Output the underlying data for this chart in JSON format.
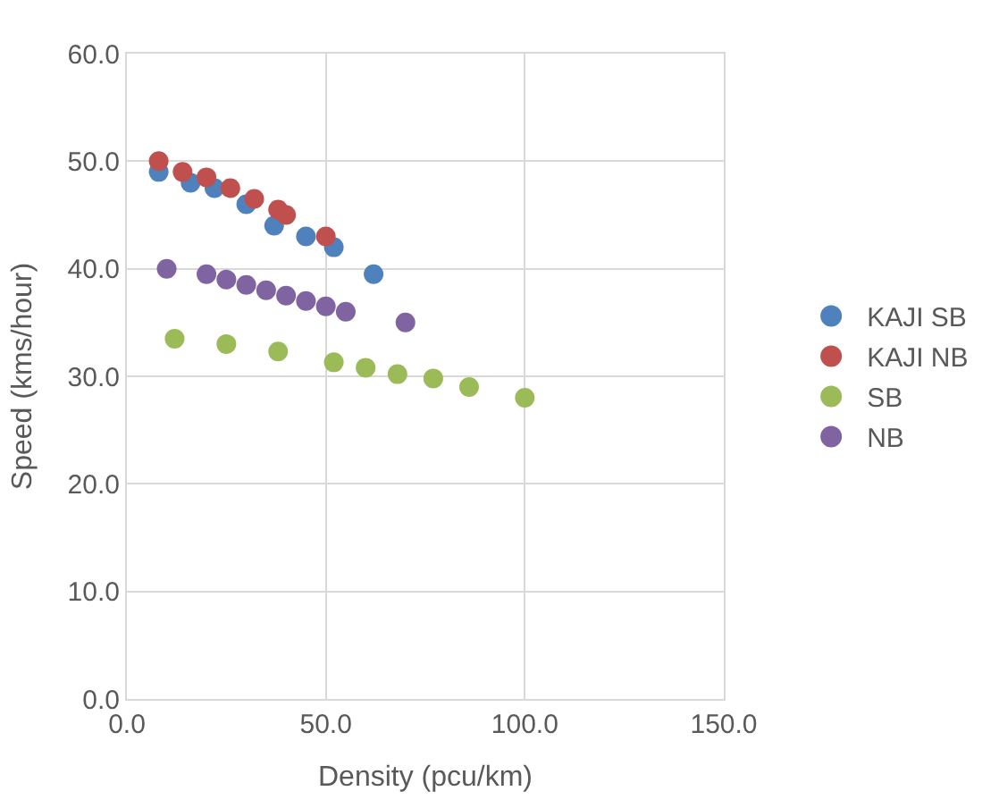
{
  "chart_data": {
    "type": "scatter",
    "xlabel": "Density (pcu/km)",
    "ylabel": "Speed (kms/hour)",
    "xlim": [
      0,
      150
    ],
    "ylim": [
      0,
      60
    ],
    "xticks": [
      {
        "value": 0,
        "label": "0.0"
      },
      {
        "value": 50,
        "label": "50.0"
      },
      {
        "value": 100,
        "label": "100.0"
      },
      {
        "value": 150,
        "label": "150.0"
      }
    ],
    "yticks": [
      {
        "value": 0,
        "label": "0.0"
      },
      {
        "value": 10,
        "label": "10.0"
      },
      {
        "value": 20,
        "label": "20.0"
      },
      {
        "value": 30,
        "label": "30.0"
      },
      {
        "value": 40,
        "label": "40.0"
      },
      {
        "value": 50,
        "label": "50.0"
      },
      {
        "value": 60,
        "label": "60.0"
      }
    ],
    "grid": true,
    "legend": "right",
    "marker": "circle",
    "series": [
      {
        "name": "KAJI SB",
        "color": "#4f81bd",
        "x": [
          8,
          16,
          22,
          30,
          37,
          45,
          52,
          62
        ],
        "values": [
          49,
          48,
          47.5,
          46,
          44,
          43,
          42,
          39.5
        ]
      },
      {
        "name": "KAJI NB",
        "color": "#c0504d",
        "x": [
          8,
          14,
          20,
          26,
          32,
          38,
          40,
          50
        ],
        "values": [
          50,
          49,
          48.5,
          47.5,
          46.5,
          45.5,
          45,
          43
        ]
      },
      {
        "name": "SB",
        "color": "#9bbb59",
        "x": [
          12,
          25,
          38,
          52,
          60,
          68,
          77,
          86,
          100
        ],
        "values": [
          33.5,
          33,
          32.3,
          31.3,
          30.8,
          30.2,
          29.8,
          29,
          28
        ]
      },
      {
        "name": "NB",
        "color": "#8064a2",
        "x": [
          10,
          20,
          25,
          30,
          35,
          40,
          45,
          50,
          55,
          70
        ],
        "values": [
          40,
          39.5,
          39,
          38.5,
          38,
          37.5,
          37,
          36.5,
          36,
          35
        ]
      }
    ]
  }
}
